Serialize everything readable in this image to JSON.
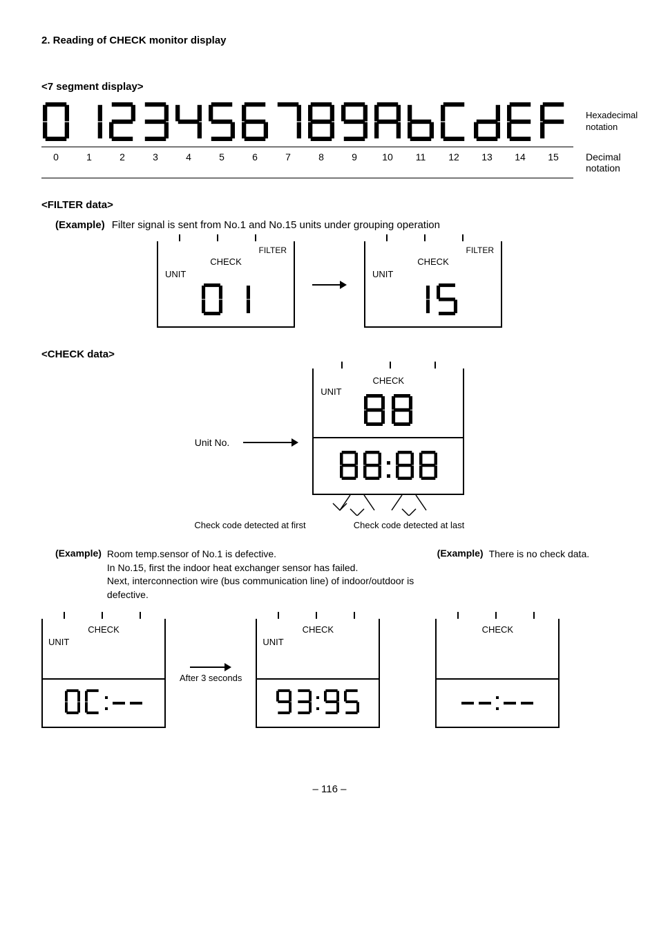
{
  "section_title": "2.  Reading of CHECK monitor display",
  "seg_heading": "<7 segment display>",
  "hex_label": "Hexadecimal notation",
  "dec_label": "Decimal notation",
  "decimals": [
    "0",
    "1",
    "2",
    "3",
    "4",
    "5",
    "6",
    "7",
    "8",
    "9",
    "10",
    "11",
    "12",
    "13",
    "14",
    "15"
  ],
  "filter_heading": "<FILTER data>",
  "filter_example_label": "(Example)",
  "filter_example_text": "Filter signal is sent from No.1 and No.15 units under grouping operation",
  "lcd": {
    "filter": "FILTER",
    "check": "CHECK",
    "unit": "UNIT"
  },
  "check_heading": "<CHECK data>",
  "unitno_label": "Unit No.",
  "check_first": "Check code detected at first",
  "check_last": "Check code detected at last",
  "ex_left_label": "(Example)",
  "ex_left_text": "Room temp.sensor of No.1 is defective.\nIn No.15, first the indoor heat exchanger sensor has failed.\nNext, interconnection wire (bus communication line) of indoor/outdoor is defective.",
  "ex_right_label": "(Example)",
  "ex_right_text": "There is no check data.",
  "after3": "After 3 seconds",
  "page": "– 116 –",
  "segments": {
    "hex": [
      "0",
      "1",
      "2",
      "3",
      "4",
      "5",
      "6",
      "7",
      "8",
      "9",
      "A",
      "b",
      "C",
      "d",
      "E",
      "F"
    ],
    "map": {
      "0": [
        1,
        1,
        1,
        1,
        1,
        1,
        0
      ],
      "1": [
        0,
        1,
        1,
        0,
        0,
        0,
        0
      ],
      "2": [
        1,
        1,
        0,
        1,
        1,
        0,
        1
      ],
      "3": [
        1,
        1,
        1,
        1,
        0,
        0,
        1
      ],
      "4": [
        0,
        1,
        1,
        0,
        0,
        1,
        1
      ],
      "5": [
        1,
        0,
        1,
        1,
        0,
        1,
        1
      ],
      "6": [
        1,
        0,
        1,
        1,
        1,
        1,
        1
      ],
      "7": [
        1,
        1,
        1,
        0,
        0,
        0,
        0
      ],
      "8": [
        1,
        1,
        1,
        1,
        1,
        1,
        1
      ],
      "9": [
        1,
        1,
        1,
        1,
        0,
        1,
        1
      ],
      "A": [
        1,
        1,
        1,
        0,
        1,
        1,
        1
      ],
      "b": [
        0,
        0,
        1,
        1,
        1,
        1,
        1
      ],
      "C": [
        1,
        0,
        0,
        1,
        1,
        1,
        0
      ],
      "d": [
        0,
        1,
        1,
        1,
        1,
        0,
        1
      ],
      "E": [
        1,
        0,
        0,
        1,
        1,
        1,
        1
      ],
      "F": [
        1,
        0,
        0,
        0,
        1,
        1,
        1
      ]
    }
  }
}
